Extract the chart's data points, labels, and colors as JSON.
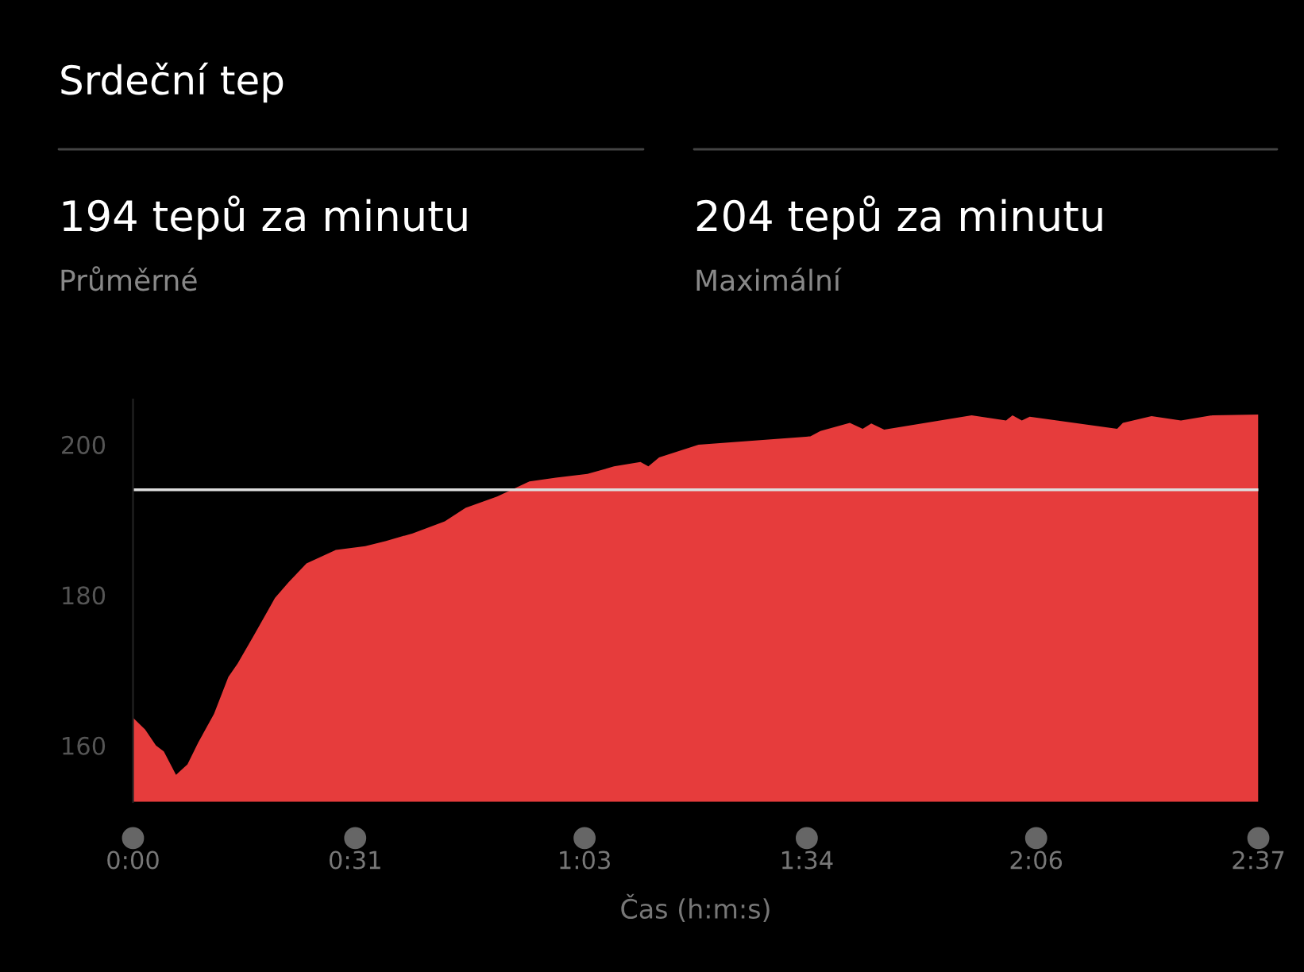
{
  "chart_data": {
    "type": "area",
    "title": "Srdeční tep",
    "annotations": [
      "194 tepů za minutu",
      "Průměrné",
      "204 tepů za minutu",
      "Maximální"
    ],
    "xlabel": "Čas (h:m:s)",
    "x": [
      0,
      1.7,
      3.2,
      4.3,
      6.0,
      7.6,
      9.1,
      11.3,
      13.3,
      14.6,
      16.9,
      19.8,
      21.7,
      24.2,
      28.3,
      32.4,
      35.3,
      39.0,
      43.5,
      46.4,
      50.8,
      55.3,
      59.0,
      63.4,
      67.1,
      70.8,
      71.9,
      73.4,
      78.9,
      94.5,
      95.9,
      100.0,
      101.8,
      103.0,
      104.8,
      117.0,
      121.8,
      122.7,
      124.0,
      125.1,
      137.3,
      138.1,
      142.1,
      146.2,
      150.6,
      157
    ],
    "series": [
      {
        "color": "#e63c3c",
        "values": [
          163.7,
          162.1,
          160.0,
          159.2,
          156.1,
          157.5,
          160.4,
          164.2,
          169.1,
          170.9,
          174.7,
          179.6,
          181.7,
          184.2,
          186.0,
          186.5,
          187.2,
          188.2,
          189.8,
          191.6,
          193.1,
          195.1,
          195.6,
          196.1,
          197.1,
          197.7,
          197.1,
          198.3,
          200.0,
          201.1,
          201.8,
          202.9,
          202.1,
          202.8,
          202.0,
          203.9,
          203.2,
          203.9,
          203.2,
          203.7,
          202.1,
          202.9,
          203.8,
          203.2,
          203.9,
          204
        ]
      }
    ],
    "xlim": [
      0,
      157
    ],
    "xticks": [
      {
        "value": 0,
        "label": "0:00"
      },
      {
        "value": 31,
        "label": "0:31"
      },
      {
        "value": 63,
        "label": "1:03"
      },
      {
        "value": 94,
        "label": "1:34"
      },
      {
        "value": 126,
        "label": "2:06"
      },
      {
        "value": 157,
        "label": "2:37"
      }
    ],
    "ylim": [
      152.5,
      206
    ],
    "yticks": [
      160,
      180,
      200
    ],
    "ref_lines": [
      {
        "axis": "y",
        "value": 194,
        "color": "#dddddd"
      }
    ],
    "grid": false,
    "legend": false
  }
}
